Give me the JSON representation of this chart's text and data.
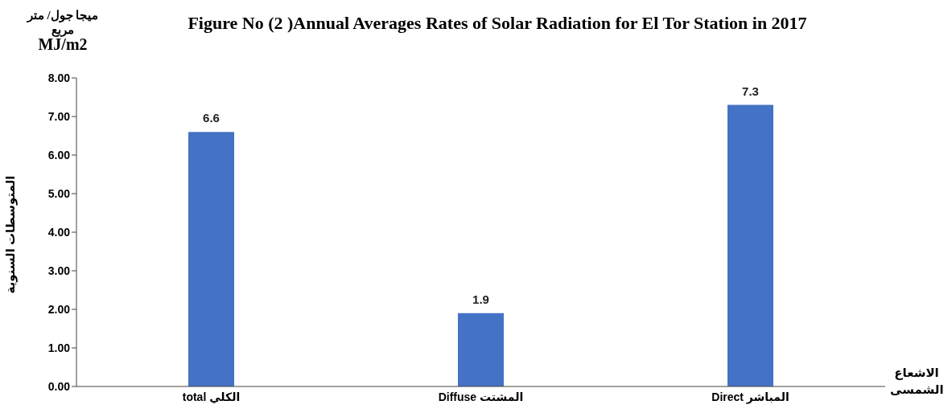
{
  "chart_data": {
    "type": "bar",
    "title": "Figure No (2 )Annual Averages Rates of Solar Radiation for El Tor Station in 2017",
    "xlabel": "الاشعاع الشمسى",
    "ylabel": "المتوسطات السنوية",
    "annotations": [
      "ميجا جول/ متر مربع",
      "MJ/m2"
    ],
    "categories": [
      "total  الكلي",
      "Diffuse المشتت",
      "Direct  المباشر"
    ],
    "values": [
      6.6,
      1.9,
      7.3
    ],
    "color": "#4472c4",
    "data_labels": true,
    "ylim": [
      0,
      8
    ],
    "yticks": [
      {
        "value": 0,
        "label": "0.00"
      },
      {
        "value": 1,
        "label": "1.00"
      },
      {
        "value": 2,
        "label": "2.00"
      },
      {
        "value": 3,
        "label": "3.00"
      },
      {
        "value": 4,
        "label": "4.00"
      },
      {
        "value": 5,
        "label": "5.00"
      },
      {
        "value": 6,
        "label": "6.00"
      },
      {
        "value": 7,
        "label": "7.00"
      },
      {
        "value": 8,
        "label": "8.00"
      }
    ],
    "grid": false
  }
}
